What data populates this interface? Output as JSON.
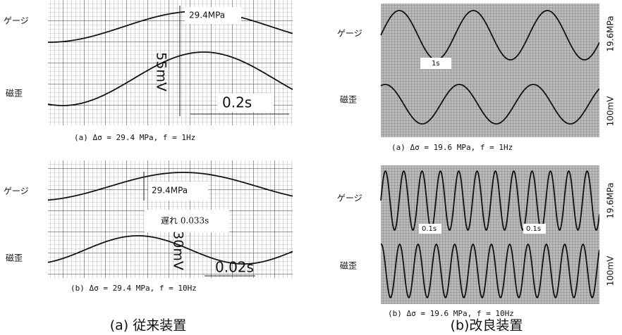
{
  "panels": [
    {
      "gauge": "ゲージ",
      "stress": "29.4MPa",
      "voltage": "55mV",
      "strain": "磁歪",
      "time": "0.2s",
      "caption": "(a)  Δσ = 29.4 MPa, f = 1Hz"
    },
    {
      "gauge": "ゲージ",
      "stress": "29.4MPa",
      "delay": "遅れ 0.033s",
      "voltage": "30mV",
      "strain": "磁歪",
      "time": "0.02s",
      "caption": "(b)  Δσ = 29.4 MPa, f = 10Hz"
    },
    {
      "gauge": "ゲージ",
      "stress": "19.6MPa",
      "time": "1s",
      "strain": "磁歪",
      "voltage": "100mV",
      "caption": "(a) Δσ = 19.6 MPa, f = 1Hz"
    },
    {
      "gauge": "ゲージ",
      "stress": "19.6MPa",
      "time": "0.1s",
      "time2": "0.1s",
      "strain": "磁歪",
      "voltage": "100mV",
      "caption": "(b) Δσ = 19.6 MPa, f = 10Hz"
    }
  ],
  "labels": [
    "(a)  従来装置",
    "(b)改良装置"
  ]
}
